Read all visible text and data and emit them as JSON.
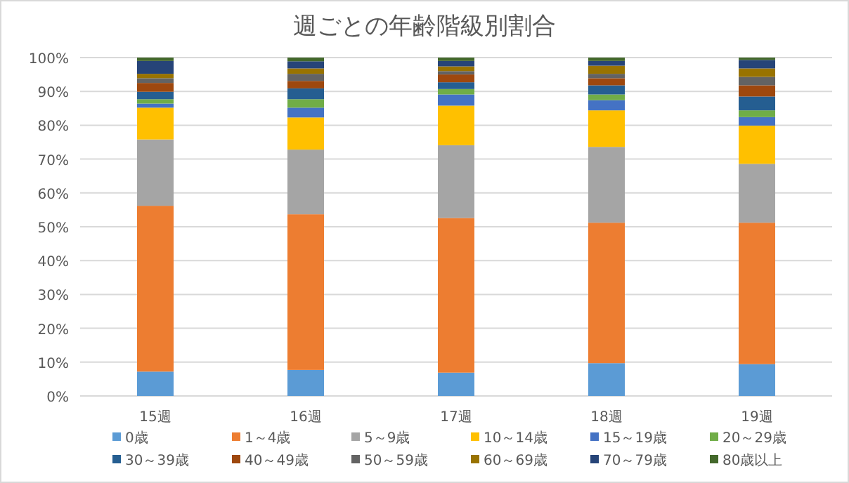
{
  "chart_data": {
    "type": "bar",
    "stacked": true,
    "title": "週ごとの年齢階級別割合",
    "categories": [
      "15週",
      "16週",
      "17週",
      "18週",
      "19週"
    ],
    "series": [
      {
        "name": "0歳",
        "color": "#5b9bd5",
        "values": [
          7.2,
          7.7,
          6.9,
          9.7,
          9.4
        ]
      },
      {
        "name": "1～4歳",
        "color": "#ed7d31",
        "values": [
          49.0,
          46.0,
          45.7,
          41.5,
          41.8
        ]
      },
      {
        "name": "5～9歳",
        "color": "#a5a5a5",
        "values": [
          19.6,
          19.1,
          21.5,
          22.4,
          17.4
        ]
      },
      {
        "name": "10～14歳",
        "color": "#ffc000",
        "values": [
          9.4,
          9.5,
          11.7,
          10.8,
          11.3
        ]
      },
      {
        "name": "15～19歳",
        "color": "#4472c4",
        "values": [
          1.2,
          2.9,
          3.3,
          3.0,
          2.5
        ]
      },
      {
        "name": "20～29歳",
        "color": "#70ad47",
        "values": [
          1.3,
          2.5,
          1.6,
          1.7,
          2.0
        ]
      },
      {
        "name": "30～39歳",
        "color": "#255e91",
        "values": [
          2.2,
          3.2,
          2.0,
          2.7,
          4.1
        ]
      },
      {
        "name": "40～49歳",
        "color": "#9e480e",
        "values": [
          2.6,
          2.2,
          2.3,
          2.1,
          3.3
        ]
      },
      {
        "name": "50～59歳",
        "color": "#636363",
        "values": [
          1.4,
          2.1,
          1.0,
          1.3,
          2.5
        ]
      },
      {
        "name": "60～69歳",
        "color": "#997300",
        "values": [
          1.3,
          1.6,
          1.4,
          2.4,
          2.5
        ]
      },
      {
        "name": "70～79歳",
        "color": "#264478",
        "values": [
          3.8,
          2.1,
          1.6,
          1.4,
          2.5
        ]
      },
      {
        "name": "80歳以上",
        "color": "#43682b",
        "values": [
          1.0,
          1.1,
          1.0,
          1.0,
          0.7
        ]
      }
    ],
    "ylim": [
      0,
      100
    ],
    "yticks": [
      {
        "value": 0,
        "label": "0%"
      },
      {
        "value": 10,
        "label": "10%"
      },
      {
        "value": 20,
        "label": "20%"
      },
      {
        "value": 30,
        "label": "30%"
      },
      {
        "value": 40,
        "label": "40%"
      },
      {
        "value": 50,
        "label": "50%"
      },
      {
        "value": 60,
        "label": "60%"
      },
      {
        "value": 70,
        "label": "70%"
      },
      {
        "value": 80,
        "label": "80%"
      },
      {
        "value": 90,
        "label": "90%"
      },
      {
        "value": 100,
        "label": "100%"
      }
    ],
    "grid": "y",
    "legend": "bottom"
  }
}
